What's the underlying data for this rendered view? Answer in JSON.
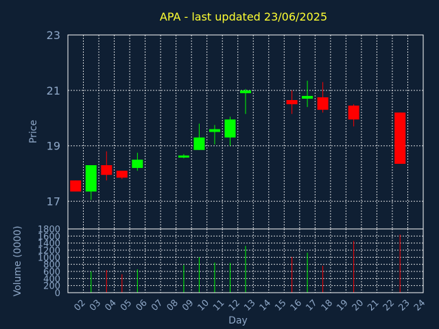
{
  "chart_data": {
    "type": "candlestick",
    "title": "APA - last updated 23/06/2025",
    "xlabel": "Day",
    "ylabel": "Price",
    "volume_ylabel": "Volume (0000)",
    "x_ticks": [
      "02",
      "03",
      "04",
      "05",
      "06",
      "07",
      "08",
      "09",
      "10",
      "11",
      "12",
      "13",
      "14",
      "15",
      "16",
      "17",
      "18",
      "19",
      "20",
      "21",
      "22",
      "23",
      "24"
    ],
    "ylim": [
      16,
      23
    ],
    "y_ticks": [
      17,
      19,
      21,
      23
    ],
    "volume_ylim": [
      0,
      1800
    ],
    "volume_ticks": [
      0,
      200,
      400,
      600,
      800,
      1000,
      1200,
      1400,
      1600,
      1800
    ],
    "grid": true,
    "colors": {
      "up": "#00ff00",
      "down": "#ff0000",
      "title": "#ffff33",
      "axis_text": "#8fa8c8",
      "background": "#0f1f33"
    },
    "candles": [
      {
        "day": "02",
        "open": 17.75,
        "high": 17.75,
        "low": 17.35,
        "close": 17.35,
        "volume": 0
      },
      {
        "day": "03",
        "open": 17.35,
        "high": 18.3,
        "low": 17.05,
        "close": 18.3,
        "volume": 600
      },
      {
        "day": "04",
        "open": 18.3,
        "high": 18.8,
        "low": 17.75,
        "close": 17.95,
        "volume": 640
      },
      {
        "day": "05",
        "open": 18.1,
        "high": 18.1,
        "low": 17.8,
        "close": 17.85,
        "volume": 520
      },
      {
        "day": "06",
        "open": 18.2,
        "high": 18.75,
        "low": 18.1,
        "close": 18.5,
        "volume": 660
      },
      {
        "day": "09",
        "open": 18.6,
        "high": 18.7,
        "low": 18.55,
        "close": 18.65,
        "volume": 780
      },
      {
        "day": "10",
        "open": 18.85,
        "high": 19.8,
        "low": 18.85,
        "close": 19.3,
        "volume": 1000
      },
      {
        "day": "11",
        "open": 19.5,
        "high": 19.75,
        "low": 19.05,
        "close": 19.6,
        "volume": 850
      },
      {
        "day": "12",
        "open": 19.3,
        "high": 20.05,
        "low": 19.0,
        "close": 19.95,
        "volume": 840
      },
      {
        "day": "13",
        "open": 20.9,
        "high": 21.05,
        "low": 20.15,
        "close": 21.0,
        "volume": 1320
      },
      {
        "day": "16",
        "open": 20.65,
        "high": 21.0,
        "low": 20.15,
        "close": 20.5,
        "volume": 1010
      },
      {
        "day": "17",
        "open": 20.7,
        "high": 21.35,
        "low": 20.4,
        "close": 20.8,
        "volume": 1130
      },
      {
        "day": "18",
        "open": 20.75,
        "high": 21.3,
        "low": 20.2,
        "close": 20.3,
        "volume": 760
      },
      {
        "day": "20",
        "open": 20.45,
        "high": 20.5,
        "low": 19.7,
        "close": 19.95,
        "volume": 1460
      },
      {
        "day": "23",
        "open": 20.2,
        "high": 20.2,
        "low": 18.35,
        "close": 18.35,
        "volume": 1640
      }
    ]
  }
}
